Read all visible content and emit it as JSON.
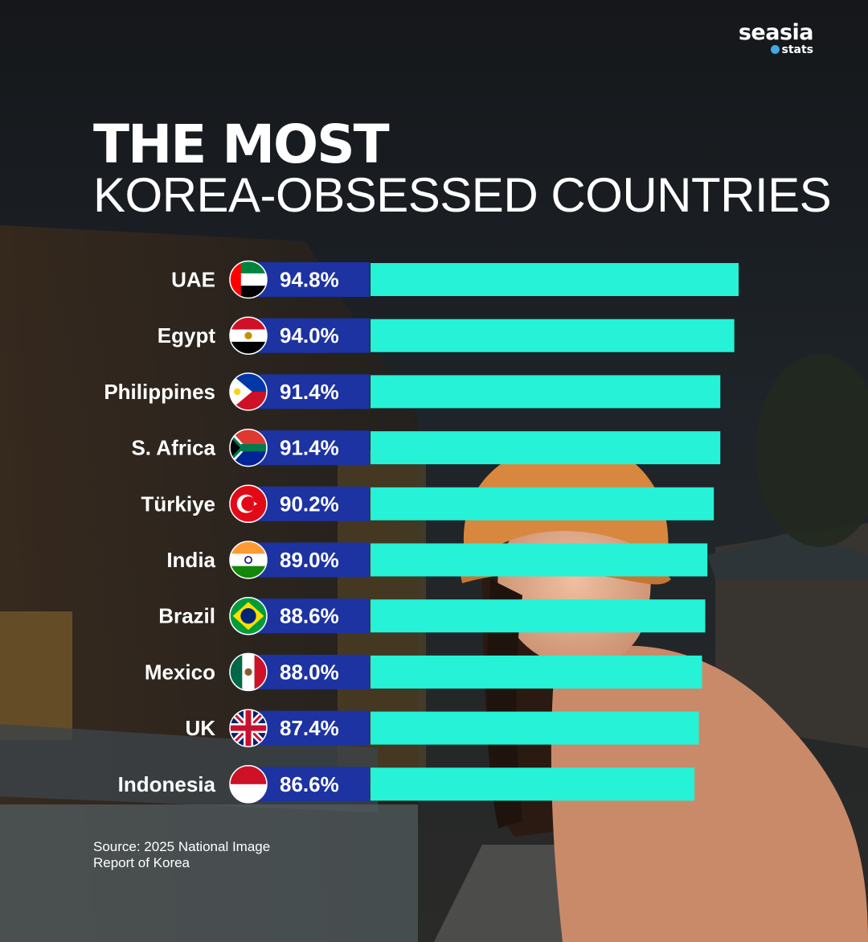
{
  "brand": {
    "name": "seasia",
    "sub": "stats"
  },
  "title_line1": "THE MOST",
  "title_line2": "KOREA-OBSESSED COUNTRIES",
  "source": [
    "Source: 2025 National Image",
    "Report of Korea"
  ],
  "colors": {
    "bar": "#25f2d6",
    "label_box": "#1d33a2",
    "text": "#ffffff"
  },
  "chart_data": {
    "type": "bar",
    "orientation": "horizontal",
    "categories": [
      "UAE",
      "Egypt",
      "Philippines",
      "S. Africa",
      "Türkiye",
      "India",
      "Brazil",
      "Mexico",
      "UK",
      "Indonesia"
    ],
    "values": [
      94.8,
      94.0,
      91.4,
      91.4,
      90.2,
      89.0,
      88.6,
      88.0,
      87.4,
      86.6
    ],
    "value_labels": [
      "94.8%",
      "94.0%",
      "91.4%",
      "91.4%",
      "90.2%",
      "89.0%",
      "88.6%",
      "88.0%",
      "87.4%",
      "86.6%"
    ],
    "flags": [
      "uae-flag-icon",
      "egypt-flag-icon",
      "philippines-flag-icon",
      "south-africa-flag-icon",
      "turkiye-flag-icon",
      "india-flag-icon",
      "brazil-flag-icon",
      "mexico-flag-icon",
      "uk-flag-icon",
      "indonesia-flag-icon"
    ],
    "unit": "%",
    "grid": false,
    "legend": "none"
  }
}
